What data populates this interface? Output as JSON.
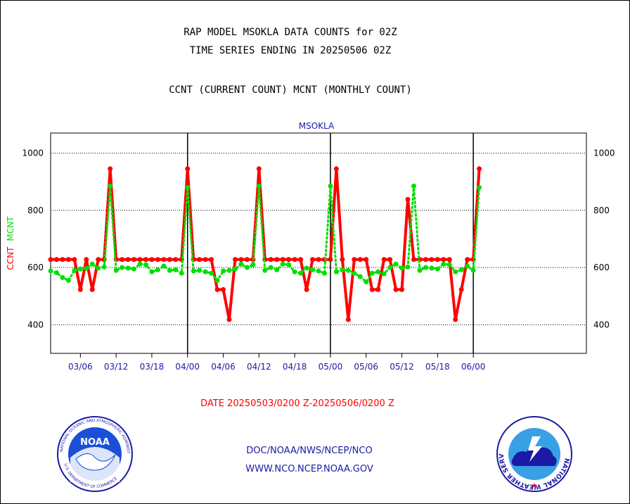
{
  "header": {
    "title_line1": "RAP MODEL MSOKLA DATA COUNTS for 02Z",
    "title_line2": "TIME SERIES ENDING IN 20250506 02Z",
    "subtitle": "CCNT (CURRENT COUNT) MCNT (MONTHLY COUNT)"
  },
  "date_label": "DATE 20250503/0200 Z-20250506/0200 Z",
  "footer": {
    "line1": "DOC/NOAA/NWS/NCEP/NCO",
    "line2": "WWW.NCO.NCEP.NOAA.GOV"
  },
  "logos": {
    "noaa_text": "NOAA",
    "noaa_ring": "NATIONAL OCEANIC AND ATMOSPHERIC ADMINISTRATION",
    "noaa_ring_bottom": "U.S. DEPARTMENT OF COMMERCE",
    "nws_ring": "NATIONAL WEATHER SERVICE"
  },
  "colors": {
    "ccnt": "#ff0000",
    "mcnt": "#00e000",
    "axis_text": "#1a1aa6",
    "frame": "#000000"
  },
  "chart_data": {
    "type": "line",
    "title": "MSOKLA",
    "ylabel_series": [
      "CCNT",
      "MCNT"
    ],
    "ylim": [
      300,
      1070
    ],
    "yticks": [
      400,
      600,
      800,
      1000
    ],
    "xlim": [
      0,
      90
    ],
    "xticks": [
      {
        "x": 5,
        "label": "03/06"
      },
      {
        "x": 11,
        "label": "03/12"
      },
      {
        "x": 17,
        "label": "03/18"
      },
      {
        "x": 23,
        "label": "04/00"
      },
      {
        "x": 29,
        "label": "04/06"
      },
      {
        "x": 35,
        "label": "04/12"
      },
      {
        "x": 41,
        "label": "04/18"
      },
      {
        "x": 47,
        "label": "05/00"
      },
      {
        "x": 53,
        "label": "05/06"
      },
      {
        "x": 59,
        "label": "05/12"
      },
      {
        "x": 65,
        "label": "05/18"
      },
      {
        "x": 71,
        "label": "06/00"
      }
    ],
    "day_boundaries": [
      23,
      47,
      71
    ],
    "grid": true,
    "series": [
      {
        "name": "CCNT",
        "x": [
          0,
          1,
          2,
          3,
          4,
          5,
          6,
          7,
          8,
          9,
          10,
          11,
          12,
          13,
          14,
          15,
          16,
          17,
          18,
          19,
          20,
          21,
          22,
          23,
          24,
          25,
          26,
          27,
          28,
          29,
          30,
          31,
          32,
          33,
          34,
          35,
          36,
          37,
          38,
          39,
          40,
          41,
          42,
          43,
          44,
          45,
          46,
          47,
          48,
          49,
          50,
          51,
          52,
          53,
          54,
          55,
          56,
          57,
          58,
          59,
          60,
          61,
          62,
          63,
          64,
          65,
          66,
          67,
          68,
          69,
          70,
          71,
          72
        ],
        "values": [
          628,
          628,
          628,
          628,
          628,
          523,
          628,
          523,
          628,
          628,
          945,
          628,
          628,
          628,
          628,
          628,
          628,
          628,
          628,
          628,
          628,
          628,
          628,
          945,
          628,
          628,
          628,
          628,
          523,
          523,
          418,
          628,
          628,
          628,
          628,
          945,
          628,
          628,
          628,
          628,
          628,
          628,
          628,
          523,
          628,
          628,
          628,
          628,
          945,
          628,
          418,
          628,
          628,
          628,
          523,
          523,
          628,
          628,
          523,
          523,
          838,
          628,
          628,
          628,
          628,
          628,
          628,
          628,
          418,
          523,
          628,
          628,
          945
        ]
      },
      {
        "name": "MCNT",
        "x": [
          0,
          1,
          2,
          3,
          4,
          5,
          6,
          7,
          8,
          9,
          10,
          11,
          12,
          13,
          14,
          15,
          16,
          17,
          18,
          19,
          20,
          21,
          22,
          23,
          24,
          25,
          26,
          27,
          28,
          29,
          30,
          31,
          32,
          33,
          34,
          35,
          36,
          37,
          38,
          39,
          40,
          41,
          42,
          43,
          44,
          45,
          46,
          47,
          48,
          49,
          50,
          51,
          52,
          53,
          54,
          55,
          56,
          57,
          58,
          59,
          60,
          61,
          62,
          63,
          64,
          65,
          66,
          67,
          68,
          69,
          70,
          71,
          72
        ],
        "values": [
          588,
          582,
          565,
          555,
          590,
          595,
          597,
          612,
          598,
          602,
          885,
          590,
          600,
          598,
          595,
          612,
          610,
          585,
          592,
          605,
          590,
          592,
          580,
          880,
          588,
          590,
          585,
          580,
          555,
          588,
          590,
          595,
          612,
          600,
          610,
          885,
          590,
          600,
          592,
          612,
          610,
          585,
          580,
          598,
          592,
          588,
          580,
          885,
          585,
          592,
          590,
          580,
          568,
          550,
          580,
          585,
          578,
          600,
          612,
          598,
          602,
          885,
          590,
          600,
          598,
          595,
          612,
          610,
          585,
          592,
          605,
          590,
          880
        ]
      }
    ]
  }
}
